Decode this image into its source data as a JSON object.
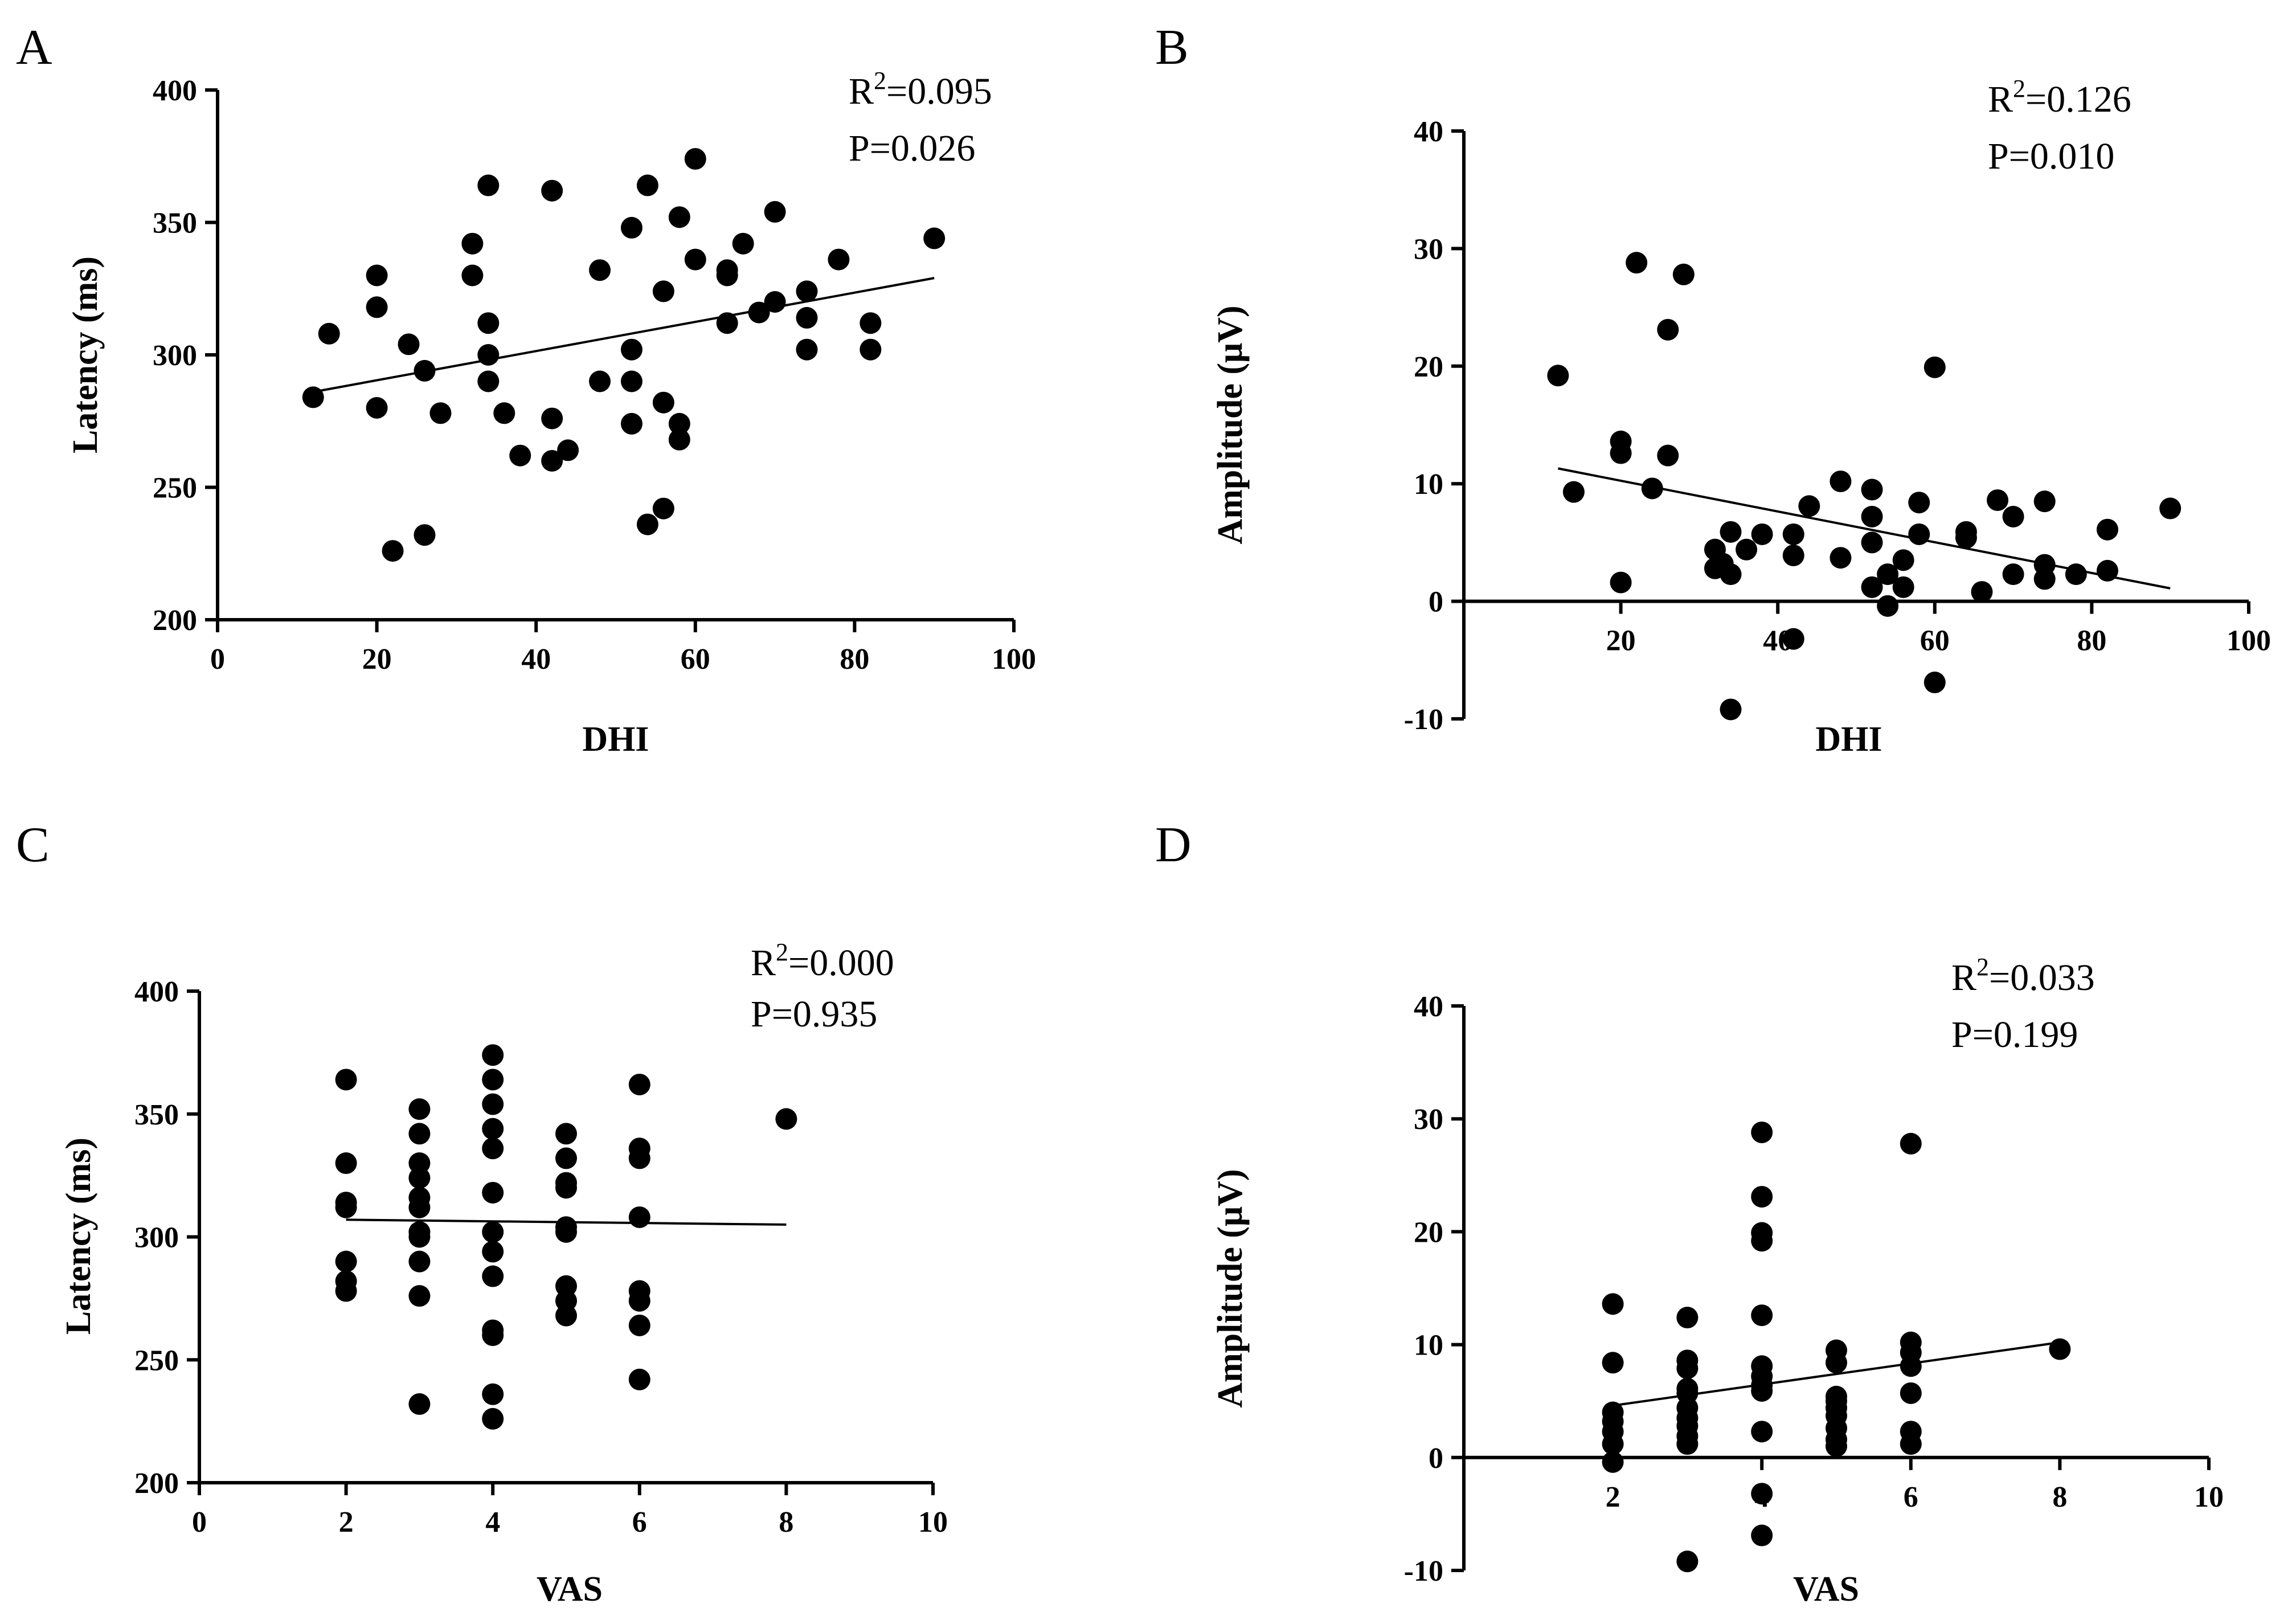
{
  "chart_data": [
    {
      "panel": "A",
      "type": "scatter",
      "xlabel": "DHI",
      "ylabel": "Latency (ms)",
      "xlim": [
        0,
        100
      ],
      "ylim": [
        200,
        400
      ],
      "xticks": [
        0,
        20,
        40,
        60,
        80,
        100
      ],
      "yticks": [
        200,
        250,
        300,
        350,
        400
      ],
      "stats": {
        "r2_prefix": "R",
        "r2_sup": "2",
        "r2_value": "=0.095",
        "p": "P=0.026"
      },
      "fit_line": {
        "x": [
          12,
          90
        ],
        "y": [
          286,
          329
        ]
      },
      "points": [
        [
          12,
          284
        ],
        [
          14,
          308
        ],
        [
          20,
          330
        ],
        [
          20,
          318
        ],
        [
          20,
          280
        ],
        [
          22,
          226
        ],
        [
          24,
          304
        ],
        [
          26,
          294
        ],
        [
          26,
          232
        ],
        [
          28,
          278
        ],
        [
          32,
          342
        ],
        [
          32,
          330
        ],
        [
          34,
          364
        ],
        [
          34,
          312
        ],
        [
          34,
          300
        ],
        [
          34,
          290
        ],
        [
          36,
          278
        ],
        [
          38,
          262
        ],
        [
          42,
          362
        ],
        [
          42,
          276
        ],
        [
          42,
          260
        ],
        [
          44,
          264
        ],
        [
          48,
          332
        ],
        [
          48,
          290
        ],
        [
          52,
          348
        ],
        [
          52,
          302
        ],
        [
          52,
          290
        ],
        [
          52,
          274
        ],
        [
          54,
          364
        ],
        [
          54,
          236
        ],
        [
          56,
          324
        ],
        [
          56,
          282
        ],
        [
          56,
          242
        ],
        [
          58,
          352
        ],
        [
          58,
          274
        ],
        [
          58,
          268
        ],
        [
          60,
          374
        ],
        [
          60,
          336
        ],
        [
          64,
          332
        ],
        [
          64,
          330
        ],
        [
          64,
          312
        ],
        [
          66,
          342
        ],
        [
          68,
          316
        ],
        [
          70,
          354
        ],
        [
          70,
          320
        ],
        [
          74,
          324
        ],
        [
          74,
          314
        ],
        [
          74,
          302
        ],
        [
          78,
          336
        ],
        [
          82,
          312
        ],
        [
          82,
          302
        ],
        [
          90,
          344
        ]
      ]
    },
    {
      "panel": "B",
      "type": "scatter",
      "xlabel": "DHI",
      "ylabel": "Amplitude (μV)",
      "xlim": [
        0,
        100
      ],
      "ylim": [
        -10,
        40
      ],
      "xticks": [
        20,
        40,
        60,
        80,
        100
      ],
      "yticks": [
        -10,
        0,
        10,
        20,
        30,
        40
      ],
      "stats": {
        "r2_prefix": "R",
        "r2_sup": "2",
        "r2_value": "=0.126",
        "p": "P=0.010"
      },
      "fit_line": {
        "x": [
          12,
          90
        ],
        "y": [
          11.3,
          1.1
        ]
      },
      "points": [
        [
          12,
          19.2
        ],
        [
          14,
          9.3
        ],
        [
          20,
          13.6
        ],
        [
          20,
          12.6
        ],
        [
          20,
          1.6
        ],
        [
          22,
          28.8
        ],
        [
          24,
          9.6
        ],
        [
          26,
          23.1
        ],
        [
          26,
          12.4
        ],
        [
          28,
          27.8
        ],
        [
          32,
          4.4
        ],
        [
          32,
          2.8
        ],
        [
          33,
          3.2
        ],
        [
          34,
          5.9
        ],
        [
          34,
          2.3
        ],
        [
          34,
          -9.2
        ],
        [
          36,
          4.4
        ],
        [
          38,
          5.7
        ],
        [
          42,
          5.7
        ],
        [
          42,
          3.9
        ],
        [
          42,
          -3.2
        ],
        [
          44,
          8.1
        ],
        [
          48,
          10.2
        ],
        [
          48,
          3.7
        ],
        [
          52,
          9.5
        ],
        [
          52,
          7.2
        ],
        [
          52,
          5.0
        ],
        [
          52,
          1.2
        ],
        [
          54,
          2.3
        ],
        [
          54,
          -0.4
        ],
        [
          56,
          3.5
        ],
        [
          56,
          1.2
        ],
        [
          58,
          8.4
        ],
        [
          58,
          5.7
        ],
        [
          60,
          19.9
        ],
        [
          60,
          -6.9
        ],
        [
          64,
          5.9
        ],
        [
          64,
          5.4
        ],
        [
          66,
          0.8
        ],
        [
          68,
          8.6
        ],
        [
          70,
          7.2
        ],
        [
          70,
          2.3
        ],
        [
          74,
          8.5
        ],
        [
          74,
          3.1
        ],
        [
          74,
          1.9
        ],
        [
          78,
          2.3
        ],
        [
          82,
          6.1
        ],
        [
          82,
          2.6
        ],
        [
          90,
          7.9
        ]
      ]
    },
    {
      "panel": "C",
      "type": "scatter",
      "xlabel": "VAS",
      "ylabel": "Latency (ms)",
      "xlim": [
        0,
        10
      ],
      "ylim": [
        200,
        400
      ],
      "xticks": [
        0,
        2,
        4,
        6,
        8,
        10
      ],
      "yticks": [
        200,
        250,
        300,
        350,
        400
      ],
      "stats": {
        "r2_prefix": "R",
        "r2_sup": "2",
        "r2_value": "=0.000",
        "p": "P=0.935"
      },
      "fit_line": {
        "x": [
          2,
          8
        ],
        "y": [
          307,
          305
        ]
      },
      "points": [
        [
          2,
          364
        ],
        [
          2,
          330
        ],
        [
          2,
          314
        ],
        [
          2,
          312
        ],
        [
          2,
          290
        ],
        [
          2,
          282
        ],
        [
          2,
          278
        ],
        [
          3,
          352
        ],
        [
          3,
          342
        ],
        [
          3,
          330
        ],
        [
          3,
          324
        ],
        [
          3,
          316
        ],
        [
          3,
          312
        ],
        [
          3,
          302
        ],
        [
          3,
          300
        ],
        [
          3,
          290
        ],
        [
          3,
          276
        ],
        [
          3,
          232
        ],
        [
          4,
          374
        ],
        [
          4,
          364
        ],
        [
          4,
          354
        ],
        [
          4,
          344
        ],
        [
          4,
          336
        ],
        [
          4,
          318
        ],
        [
          4,
          302
        ],
        [
          4,
          294
        ],
        [
          4,
          284
        ],
        [
          4,
          262
        ],
        [
          4,
          260
        ],
        [
          4,
          236
        ],
        [
          4,
          226
        ],
        [
          5,
          342
        ],
        [
          5,
          332
        ],
        [
          5,
          322
        ],
        [
          5,
          320
        ],
        [
          5,
          304
        ],
        [
          5,
          302
        ],
        [
          5,
          280
        ],
        [
          5,
          274
        ],
        [
          5,
          268
        ],
        [
          6,
          362
        ],
        [
          6,
          336
        ],
        [
          6,
          332
        ],
        [
          6,
          308
        ],
        [
          6,
          278
        ],
        [
          6,
          274
        ],
        [
          6,
          264
        ],
        [
          6,
          242
        ],
        [
          8,
          348
        ]
      ]
    },
    {
      "panel": "D",
      "type": "scatter",
      "xlabel": "VAS",
      "ylabel": "Amplitude (μV)",
      "xlim": [
        0,
        10
      ],
      "ylim": [
        -10,
        40
      ],
      "xticks": [
        2,
        4,
        6,
        8,
        10
      ],
      "yticks": [
        -10,
        0,
        10,
        20,
        30,
        40
      ],
      "stats": {
        "r2_prefix": "R",
        "r2_sup": "2",
        "r2_value": "=0.033",
        "p": "P=0.199"
      },
      "fit_line": {
        "x": [
          2,
          8
        ],
        "y": [
          4.6,
          10.2
        ]
      },
      "points": [
        [
          2,
          13.6
        ],
        [
          2,
          8.4
        ],
        [
          2,
          4.0
        ],
        [
          2,
          3.2
        ],
        [
          2,
          2.3
        ],
        [
          2,
          1.2
        ],
        [
          2,
          -0.4
        ],
        [
          3,
          12.4
        ],
        [
          3,
          8.6
        ],
        [
          3,
          7.9
        ],
        [
          3,
          6.1
        ],
        [
          3,
          5.7
        ],
        [
          3,
          4.4
        ],
        [
          3,
          3.5
        ],
        [
          3,
          2.8
        ],
        [
          3,
          1.9
        ],
        [
          3,
          1.2
        ],
        [
          3,
          -9.2
        ],
        [
          4,
          28.8
        ],
        [
          4,
          23.1
        ],
        [
          4,
          19.9
        ],
        [
          4,
          19.2
        ],
        [
          4,
          12.6
        ],
        [
          4,
          8.1
        ],
        [
          4,
          7.2
        ],
        [
          4,
          6.4
        ],
        [
          4,
          5.9
        ],
        [
          4,
          2.3
        ],
        [
          4,
          -3.2
        ],
        [
          4,
          -6.9
        ],
        [
          5,
          9.5
        ],
        [
          5,
          8.4
        ],
        [
          5,
          5.4
        ],
        [
          5,
          5.0
        ],
        [
          5,
          4.4
        ],
        [
          5,
          3.7
        ],
        [
          5,
          2.6
        ],
        [
          5,
          1.6
        ],
        [
          5,
          1.0
        ],
        [
          6,
          10.2
        ],
        [
          6,
          9.3
        ],
        [
          6,
          8.1
        ],
        [
          6,
          5.7
        ],
        [
          6,
          2.3
        ],
        [
          6,
          1.2
        ],
        [
          6,
          27.8
        ],
        [
          8,
          9.6
        ]
      ]
    }
  ]
}
